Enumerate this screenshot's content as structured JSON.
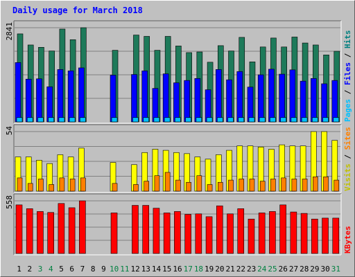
{
  "chart_data": {
    "type": "bar",
    "title": "Daily usage for March 2018",
    "categories": [
      "1",
      "2",
      "3",
      "4",
      "5",
      "6",
      "7",
      "8",
      "9",
      "10",
      "11",
      "12",
      "13",
      "14",
      "15",
      "16",
      "17",
      "18",
      "19",
      "20",
      "21",
      "22",
      "23",
      "24",
      "25",
      "26",
      "27",
      "28",
      "29",
      "30",
      "31"
    ],
    "weekend_days": [
      "3",
      "4",
      "10",
      "11",
      "17",
      "18",
      "24",
      "25",
      "31"
    ],
    "panels": [
      {
        "name": "pages-files-hits",
        "ymax_label": "2841",
        "ymax": 2841,
        "legend": [
          {
            "text": "Pages",
            "color": "#00c0ff"
          },
          {
            "text": "Files",
            "color": "#0000ff"
          },
          {
            "text": "Hits",
            "color": "#008080"
          }
        ],
        "series": [
          {
            "name": "Hits",
            "color": "#1e7a5a",
            "values": [
              2655,
              2320,
              2250,
              2140,
              2800,
              2480,
              2841,
              null,
              null,
              2160,
              null,
              2620,
              2580,
              2160,
              2580,
              2290,
              2090,
              2110,
              1800,
              2300,
              2140,
              2550,
              1810,
              2260,
              2530,
              2260,
              2560,
              2380,
              2320,
              2020,
              2130
            ]
          },
          {
            "name": "Files",
            "color": "#0000ff",
            "values": [
              1790,
              1290,
              1300,
              1060,
              1580,
              1540,
              1630,
              null,
              null,
              1410,
              null,
              1430,
              1540,
              1010,
              1450,
              1180,
              1250,
              1310,
              970,
              1580,
              1270,
              1520,
              1050,
              1420,
              1590,
              1440,
              1570,
              1230,
              1310,
              1150,
              1250
            ]
          },
          {
            "name": "Pages",
            "color": "#00c0ff",
            "values": [
              130,
              130,
              130,
              130,
              130,
              130,
              130,
              null,
              null,
              130,
              null,
              130,
              130,
              130,
              130,
              130,
              130,
              130,
              130,
              130,
              130,
              130,
              130,
              130,
              130,
              130,
              130,
              130,
              130,
              130,
              130
            ]
          }
        ]
      },
      {
        "name": "visits-sites",
        "ymax_label": "54",
        "ymax": 54,
        "legend": [
          {
            "text": "Visits",
            "color": "#c0c000"
          },
          {
            "text": "Sites",
            "color": "#ff8000"
          }
        ],
        "series": [
          {
            "name": "Visits",
            "color": "#ffff00",
            "values": [
              31,
              31,
              28,
              25,
              33,
              31,
              39,
              null,
              null,
              26,
              null,
              24,
              35,
              38,
              37,
              35,
              34,
              31,
              29,
              33,
              37,
              41,
              41,
              40,
              38,
              42,
              41,
              41,
              54,
              54,
              46
            ]
          },
          {
            "name": "Sites",
            "color": "#ff8000",
            "values": [
              12,
              7,
              11,
              6,
              12,
              11,
              12,
              null,
              null,
              7,
              null,
              6,
              9,
              14,
              17,
              10,
              8,
              14,
              6,
              8,
              10,
              11,
              11,
              9,
              11,
              12,
              11,
              11,
              13,
              13,
              10
            ]
          }
        ]
      },
      {
        "name": "kbytes",
        "ymax_label": "558",
        "ymax": 558,
        "legend": [
          {
            "text": "KBytes",
            "color": "#ff0000"
          }
        ],
        "series": [
          {
            "name": "KBytes",
            "color": "#ff0000",
            "values": [
              515,
              475,
              445,
              435,
              530,
              485,
              558,
              null,
              null,
              430,
              null,
              510,
              510,
              480,
              430,
              445,
              415,
              420,
              390,
              505,
              420,
              475,
              365,
              430,
              445,
              515,
              440,
              425,
              365,
              375,
              375
            ]
          }
        ]
      }
    ]
  }
}
